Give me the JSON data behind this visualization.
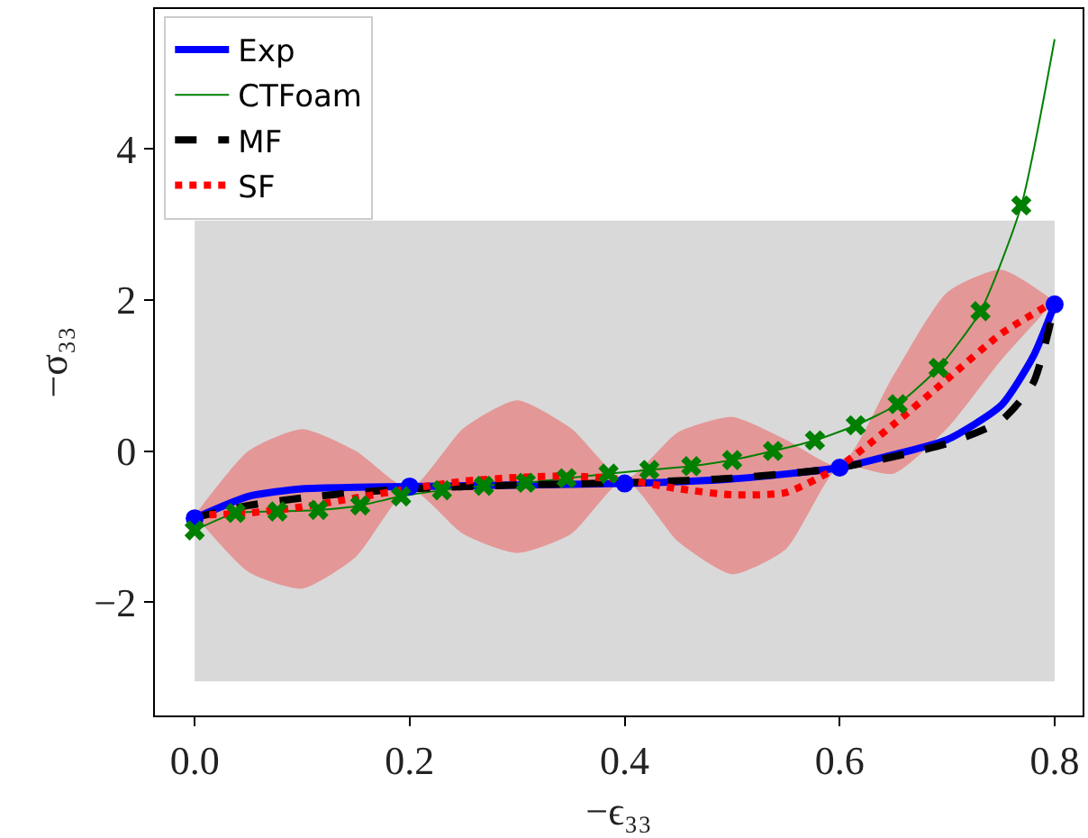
{
  "chart_data": {
    "type": "line",
    "xlabel": "−ϵ₃₃",
    "ylabel": "−σ₃₃",
    "xlim": [
      -0.037,
      0.826
    ],
    "ylim": [
      -3.5,
      5.85
    ],
    "xticks": [
      {
        "value": 0,
        "label": "0.0"
      },
      0.2,
      0.4,
      0.6,
      0.8
    ],
    "yticks": [
      {
        "value": -2,
        "label": "−2"
      },
      0,
      2,
      4
    ],
    "grid": false,
    "legend": "top left",
    "bands": [
      {
        "axis": "y",
        "from": -3.05,
        "to": 3.05,
        "color": "#d9d9d9"
      }
    ],
    "series": [
      {
        "name": "Exp",
        "color": "#0000ff",
        "line_style": "solid",
        "x": [
          0,
          0.05,
          0.1,
          0.15,
          0.2,
          0.3,
          0.4,
          0.5,
          0.6,
          0.65,
          0.7,
          0.75,
          0.78,
          0.8
        ],
        "values": [
          -0.89,
          -0.6,
          -0.5,
          -0.48,
          -0.47,
          -0.45,
          -0.43,
          -0.37,
          -0.22,
          -0.05,
          0.15,
          0.6,
          1.25,
          1.94
        ]
      },
      {
        "name": "CTFoam",
        "color": "#008000",
        "line_style": "solid",
        "x": [
          0,
          0.038,
          0.077,
          0.115,
          0.154,
          0.192,
          0.23,
          0.269,
          0.308,
          0.346,
          0.385,
          0.423,
          0.462,
          0.5,
          0.538,
          0.577,
          0.615,
          0.654,
          0.692,
          0.731,
          0.769,
          0.8
        ],
        "values": [
          -1.05,
          -0.82,
          -0.8,
          -0.78,
          -0.72,
          -0.6,
          -0.52,
          -0.46,
          -0.42,
          -0.36,
          -0.3,
          -0.25,
          -0.2,
          -0.12,
          0.0,
          0.14,
          0.34,
          0.62,
          1.1,
          1.85,
          3.25,
          5.45
        ]
      },
      {
        "name": "MF",
        "color": "#000000",
        "line_style": "dashed",
        "x": [
          0,
          0.05,
          0.1,
          0.15,
          0.2,
          0.3,
          0.4,
          0.5,
          0.6,
          0.7,
          0.75,
          0.78,
          0.8
        ],
        "values": [
          -0.88,
          -0.72,
          -0.62,
          -0.55,
          -0.5,
          -0.45,
          -0.42,
          -0.36,
          -0.22,
          0.1,
          0.4,
          0.9,
          1.94
        ]
      },
      {
        "name": "SF",
        "color": "#ff0000",
        "line_style": "dotted",
        "x": [
          0,
          0.05,
          0.1,
          0.15,
          0.2,
          0.25,
          0.3,
          0.35,
          0.4,
          0.45,
          0.5,
          0.55,
          0.6,
          0.65,
          0.7,
          0.75,
          0.8
        ],
        "values": [
          -0.85,
          -0.82,
          -0.74,
          -0.62,
          -0.5,
          -0.4,
          -0.35,
          -0.33,
          -0.38,
          -0.5,
          -0.58,
          -0.55,
          -0.2,
          0.35,
          0.95,
          1.55,
          1.98
        ],
        "lower": [
          -0.85,
          -1.6,
          -1.82,
          -1.4,
          -0.5,
          -1.1,
          -1.35,
          -1.1,
          -0.38,
          -1.2,
          -1.63,
          -1.3,
          -0.2,
          -0.3,
          0.3,
          1.2,
          1.98
        ],
        "upper": [
          -0.85,
          0.0,
          0.29,
          0.0,
          -0.5,
          0.3,
          0.67,
          0.3,
          -0.38,
          0.25,
          0.45,
          0.15,
          -0.2,
          1.0,
          2.1,
          2.4,
          1.98
        ]
      },
      {
        "type": "scatter",
        "color": "#0000ff",
        "marker": "circle",
        "x": [
          0,
          0.2,
          0.4,
          0.6,
          0.8
        ],
        "values": [
          -0.89,
          -0.47,
          -0.43,
          -0.22,
          1.94
        ]
      },
      {
        "type": "scatter",
        "color": "#008000",
        "marker": "cross",
        "x": [
          0,
          0.038,
          0.077,
          0.115,
          0.154,
          0.192,
          0.23,
          0.269,
          0.308,
          0.346,
          0.385,
          0.423,
          0.462,
          0.5,
          0.538,
          0.577,
          0.615,
          0.654,
          0.692,
          0.731,
          0.769
        ],
        "values": [
          -1.05,
          -0.82,
          -0.8,
          -0.78,
          -0.72,
          -0.6,
          -0.52,
          -0.46,
          -0.42,
          -0.36,
          -0.3,
          -0.25,
          -0.2,
          -0.12,
          0.0,
          0.14,
          0.34,
          0.62,
          1.1,
          1.85,
          3.25
        ]
      }
    ]
  }
}
